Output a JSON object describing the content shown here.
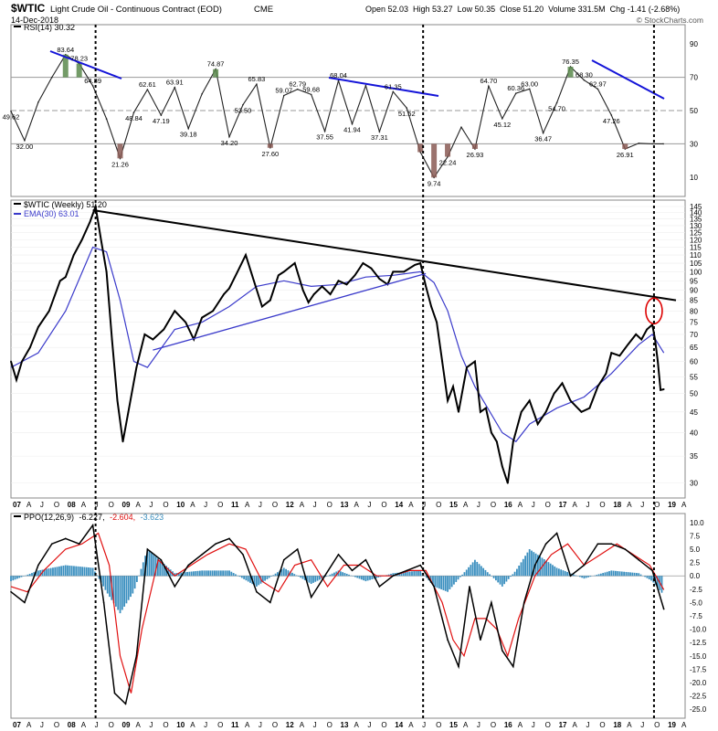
{
  "header": {
    "symbol": "$WTIC",
    "name": "Light Crude Oil - Continuous Contract (EOD)",
    "exchange": "CME",
    "date": "14-Dec-2018",
    "ohlc": "Open 52.03  High 53.27  Low 50.35  Close 51.20  Volume 331.5M  Chg -1.41 (-2.68%)",
    "watermark": "© StockCharts.com"
  },
  "chart_data": [
    {
      "type": "line",
      "panel": "rsi",
      "legend": "RSI(14) 30.32",
      "ylim": [
        0,
        100
      ],
      "y_ticks": [
        "90",
        "70",
        "50",
        "30",
        "10"
      ],
      "reference_levels": [
        70,
        50,
        30
      ],
      "series": [
        {
          "name": "RSI(14)",
          "x": [
            2007.0,
            2007.25,
            2007.5,
            2007.75,
            2008.0,
            2008.25,
            2008.5,
            2008.75,
            2009.0,
            2009.25,
            2009.5,
            2009.75,
            2010.0,
            2010.25,
            2010.5,
            2010.75,
            2011.0,
            2011.25,
            2011.5,
            2011.75,
            2012.0,
            2012.25,
            2012.5,
            2012.75,
            2013.0,
            2013.25,
            2013.5,
            2013.75,
            2014.0,
            2014.25,
            2014.5,
            2014.75,
            2015.0,
            2015.25,
            2015.5,
            2015.75,
            2016.0,
            2016.25,
            2016.5,
            2016.75,
            2017.0,
            2017.25,
            2017.5,
            2017.75,
            2018.0,
            2018.25,
            2018.5,
            2018.75,
            2018.95
          ],
          "y": [
            49.62,
            32.0,
            55,
            70,
            83.64,
            78.23,
            64.89,
            45,
            21.26,
            48.84,
            62.61,
            47.19,
            63.91,
            39.18,
            60,
            74.87,
            34.2,
            53.5,
            65.83,
            27.6,
            59.07,
            62.79,
            59.68,
            37.55,
            68.04,
            41.94,
            65,
            37.31,
            61.35,
            51.52,
            25,
            9.74,
            22.24,
            40,
            26.93,
            64.7,
            45.12,
            60.36,
            63.0,
            36.47,
            54.7,
            76.35,
            68.3,
            62.97,
            47.26,
            26.91,
            30.32,
            30,
            30
          ]
        }
      ],
      "annotations": [
        "83.64",
        "78.23",
        "64.89",
        "62.61",
        "63.91",
        "74.87",
        "65.83",
        "62.79",
        "59.68",
        "68.04",
        "61.35",
        "64.70",
        "60.36",
        "63.00",
        "76.35",
        "68.30",
        "62.97",
        "49.62",
        "53.72",
        "48.84",
        "47.19",
        "39.18",
        "53.50",
        "59.07",
        "41.94",
        "37.55",
        "37.31",
        "51.52",
        "45.12",
        "54.70",
        "47.26",
        "32.00",
        "21.26",
        "34.20",
        "27.60",
        "22.24",
        "26.93",
        "36.47",
        "26.91",
        "9.74"
      ]
    },
    {
      "type": "line",
      "panel": "price",
      "y_scale": "log",
      "ylim": [
        28,
        145
      ],
      "y_ticks": [
        "145",
        "140",
        "135",
        "130",
        "125",
        "120",
        "115",
        "110",
        "105",
        "100",
        "95",
        "90",
        "85",
        "80",
        "75",
        "70",
        "65",
        "60",
        "55",
        "50",
        "45",
        "40",
        "35",
        "30"
      ],
      "series": [
        {
          "name": "$WTIC (Weekly) 51.20",
          "color": "#000000",
          "x": [
            2007.0,
            2007.1,
            2007.2,
            2007.35,
            2007.5,
            2007.7,
            2007.9,
            2008.0,
            2008.15,
            2008.3,
            2008.45,
            2008.55,
            2008.65,
            2008.75,
            2008.85,
            2008.95,
            2009.05,
            2009.15,
            2009.3,
            2009.45,
            2009.6,
            2009.8,
            2010.0,
            2010.2,
            2010.35,
            2010.5,
            2010.7,
            2010.9,
            2011.0,
            2011.15,
            2011.3,
            2011.45,
            2011.6,
            2011.75,
            2011.9,
            2012.0,
            2012.2,
            2012.35,
            2012.45,
            2012.55,
            2012.7,
            2012.85,
            2013.0,
            2013.15,
            2013.3,
            2013.45,
            2013.6,
            2013.75,
            2013.9,
            2014.0,
            2014.2,
            2014.4,
            2014.5,
            2014.6,
            2014.7,
            2014.8,
            2014.9,
            2015.0,
            2015.1,
            2015.2,
            2015.35,
            2015.5,
            2015.6,
            2015.7,
            2015.8,
            2015.9,
            2016.0,
            2016.1,
            2016.2,
            2016.35,
            2016.5,
            2016.65,
            2016.8,
            2016.95,
            2017.1,
            2017.25,
            2017.45,
            2017.6,
            2017.75,
            2017.9,
            2018.0,
            2018.15,
            2018.3,
            2018.45,
            2018.55,
            2018.65,
            2018.75,
            2018.8,
            2018.85,
            2018.9,
            2018.96
          ],
          "y": [
            60,
            54,
            60,
            65,
            73,
            80,
            95,
            97,
            110,
            120,
            133,
            145,
            120,
            100,
            68,
            48,
            38,
            45,
            58,
            70,
            68,
            72,
            80,
            75,
            68,
            77,
            80,
            88,
            91,
            100,
            110,
            95,
            82,
            85,
            98,
            100,
            105,
            90,
            84,
            88,
            92,
            88,
            95,
            93,
            98,
            105,
            102,
            96,
            93,
            100,
            100,
            104,
            105,
            92,
            82,
            75,
            60,
            48,
            52,
            45,
            58,
            60,
            45,
            46,
            40,
            38,
            33,
            30,
            38,
            45,
            48,
            42,
            45,
            50,
            53,
            48,
            45,
            46,
            52,
            56,
            63,
            62,
            66,
            70,
            68,
            72,
            74,
            68,
            60,
            51,
            51.2
          ]
        },
        {
          "name": "EMA(30) 63.01",
          "color": "#3a3aca",
          "x": [
            2007.0,
            2007.5,
            2008.0,
            2008.5,
            2008.75,
            2009.0,
            2009.25,
            2009.5,
            2010.0,
            2010.5,
            2011.0,
            2011.5,
            2012.0,
            2012.5,
            2013.0,
            2013.5,
            2014.0,
            2014.5,
            2014.75,
            2015.0,
            2015.25,
            2015.5,
            2016.0,
            2016.25,
            2016.5,
            2017.0,
            2017.5,
            2018.0,
            2018.5,
            2018.75,
            2018.96
          ],
          "y": [
            58,
            63,
            80,
            115,
            112,
            85,
            60,
            58,
            72,
            75,
            82,
            92,
            95,
            92,
            93,
            97,
            98,
            100,
            94,
            80,
            62,
            52,
            40,
            38,
            42,
            46,
            49,
            56,
            66,
            70,
            63
          ]
        }
      ],
      "trendlines": [
        {
          "from": [
            2008.5,
            142
          ],
          "to": [
            2020.0,
            85
          ],
          "color": "#000000"
        },
        {
          "from": [
            2009.6,
            64
          ],
          "to": [
            2014.6,
            99
          ],
          "color": "#3a3aca"
        }
      ],
      "highlight": {
        "x": 2018.78,
        "y": 80,
        "color": "#dd0000"
      },
      "x_labels": [
        "07",
        "A",
        "J",
        "O",
        "08",
        "A",
        "J",
        "O",
        "09",
        "A",
        "J",
        "O",
        "10",
        "A",
        "J",
        "O",
        "11",
        "A",
        "J",
        "O",
        "12",
        "A",
        "J",
        "O",
        "13",
        "A",
        "J",
        "O",
        "14",
        "A",
        "J",
        "O",
        "15",
        "A",
        "J",
        "O",
        "16",
        "A",
        "J",
        "O",
        "17",
        "A",
        "J",
        "O",
        "18",
        "A",
        "J",
        "O",
        "19",
        "A"
      ]
    },
    {
      "type": "line",
      "panel": "ppo",
      "ylim": [
        -26,
        11
      ],
      "y_ticks": [
        "10.0",
        "7.5",
        "5.0",
        "2.5",
        "0.0",
        "-2.5",
        "-5.0",
        "-7.5",
        "-10.0",
        "-12.5",
        "-15.0",
        "-17.5",
        "-20.0",
        "-22.5",
        "-25.0"
      ],
      "legend_label": "PPO(12,26,9)",
      "legend_values": [
        "-6.227,",
        "-2.604,",
        "-3.623"
      ],
      "series": [
        {
          "name": "PPO",
          "color": "#000000",
          "x": [
            2007.0,
            2007.25,
            2007.5,
            2007.75,
            2008.0,
            2008.25,
            2008.5,
            2008.7,
            2008.9,
            2009.1,
            2009.3,
            2009.5,
            2009.75,
            2010.0,
            2010.25,
            2010.5,
            2010.75,
            2011.0,
            2011.25,
            2011.5,
            2011.75,
            2012.0,
            2012.25,
            2012.5,
            2012.75,
            2013.0,
            2013.25,
            2013.5,
            2013.75,
            2014.0,
            2014.25,
            2014.5,
            2014.75,
            2015.0,
            2015.2,
            2015.4,
            2015.6,
            2015.8,
            2016.0,
            2016.2,
            2016.4,
            2016.6,
            2016.8,
            2017.0,
            2017.25,
            2017.5,
            2017.75,
            2018.0,
            2018.25,
            2018.5,
            2018.75,
            2018.96
          ],
          "y": [
            -3,
            -5,
            2,
            6,
            7,
            6,
            9.5,
            -5,
            -22,
            -24,
            -15,
            5,
            3,
            -2,
            2,
            4,
            6,
            7,
            4,
            -3,
            -5,
            3,
            5,
            -4,
            0,
            4,
            1,
            3,
            -2,
            0,
            1,
            2,
            -2,
            -12,
            -17,
            -2,
            -12,
            -5,
            -14,
            -17,
            -5,
            2,
            6,
            8,
            0,
            2,
            6,
            6,
            5,
            3,
            1,
            -6.227
          ]
        },
        {
          "name": "Signal",
          "color": "#e01010",
          "x": [
            2007.0,
            2007.3,
            2007.6,
            2008.0,
            2008.3,
            2008.6,
            2008.8,
            2009.0,
            2009.2,
            2009.4,
            2009.7,
            2010.0,
            2010.3,
            2010.6,
            2011.0,
            2011.3,
            2011.6,
            2011.9,
            2012.2,
            2012.5,
            2012.8,
            2013.1,
            2013.4,
            2013.7,
            2014.0,
            2014.3,
            2014.6,
            2014.9,
            2015.1,
            2015.3,
            2015.5,
            2015.7,
            2015.9,
            2016.1,
            2016.3,
            2016.6,
            2016.9,
            2017.2,
            2017.5,
            2017.8,
            2018.1,
            2018.4,
            2018.7,
            2018.96
          ],
          "y": [
            -2,
            -3,
            1,
            5,
            6,
            8,
            2,
            -15,
            -22,
            -10,
            3,
            0,
            2,
            4,
            6,
            5,
            -1,
            -3,
            2,
            3,
            -2,
            2,
            2,
            0,
            0,
            1,
            1,
            -5,
            -12,
            -15,
            -8,
            -8,
            -10,
            -15,
            -8,
            0,
            4,
            6,
            2,
            4,
            6,
            4,
            2,
            -2.604
          ]
        },
        {
          "name": "Histogram",
          "color": "#3a8fbf",
          "x": [
            2007.0,
            2007.5,
            2008.0,
            2008.5,
            2008.75,
            2009.0,
            2009.25,
            2009.5,
            2010.0,
            2010.5,
            2011.0,
            2011.5,
            2012.0,
            2012.5,
            2013.0,
            2013.5,
            2014.0,
            2014.5,
            2014.75,
            2015.0,
            2015.5,
            2016.0,
            2016.25,
            2016.5,
            2017.0,
            2017.5,
            2018.0,
            2018.5,
            2018.75,
            2018.96
          ],
          "y": [
            -1,
            1,
            2,
            1.5,
            -3,
            -7,
            -3,
            5,
            0.5,
            1,
            1,
            -2,
            1.5,
            -1.5,
            1,
            -1,
            0.5,
            1,
            -2,
            -3,
            3,
            -2,
            1,
            5,
            1.5,
            -0.5,
            1,
            0.5,
            -1,
            -3.623
          ]
        }
      ]
    }
  ]
}
